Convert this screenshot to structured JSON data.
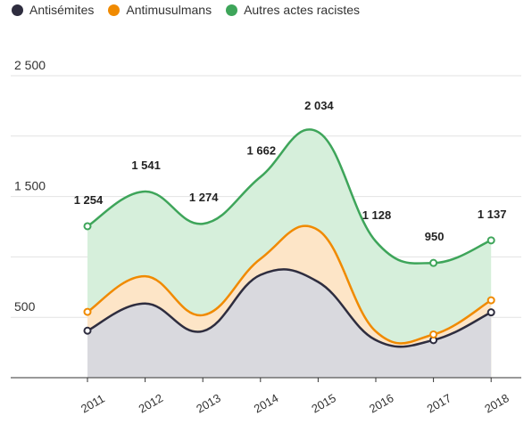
{
  "chart_data": {
    "type": "area",
    "stacked": true,
    "x": [
      "2011",
      "2012",
      "2013",
      "2014",
      "2015",
      "2016",
      "2017",
      "2018"
    ],
    "series": [
      {
        "name": "Antisémites",
        "color": "#2e2d3f",
        "fill": "#d9d9de",
        "values": [
          389,
          614,
          385,
          851,
          793,
          311,
          311,
          541
        ]
      },
      {
        "name": "Antimusulmans",
        "color": "#f08a00",
        "fill": "#fde5c7",
        "values": [
          156,
          226,
          133,
          133,
          429,
          72,
          47,
          100
        ]
      },
      {
        "name": "Autres actes racistes",
        "color": "#3ea55a",
        "fill": "#d6efdb",
        "values": [
          709,
          701,
          756,
          678,
          812,
          745,
          592,
          496
        ]
      }
    ],
    "totals": [
      1254,
      1541,
      1274,
      1662,
      2034,
      1128,
      950,
      1137
    ],
    "total_labels": [
      "1 254",
      "1 541",
      "1 274",
      "1 662",
      "2 034",
      "1 128",
      "950",
      "1 137"
    ],
    "y_ticks": [
      500,
      1500,
      2500
    ],
    "y_tick_labels": [
      "500",
      "1 500",
      "2 500"
    ],
    "ylim": [
      0,
      2500
    ],
    "grid": true,
    "legend_position": "top-left"
  }
}
